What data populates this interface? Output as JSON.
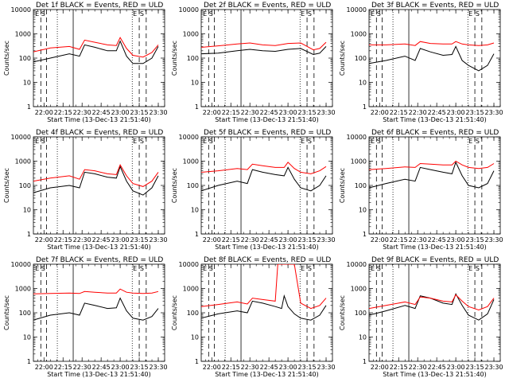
{
  "chart_data": [
    {
      "type": "line",
      "title": "Det 1f BLACK = Events, RED = ULD",
      "xlabel": "Start Time (13-Dec-13 21:51:40)",
      "ylabel": "Counts/sec",
      "yscale": "log",
      "ylim": [
        1,
        10000
      ],
      "xlim": [
        "21:51:40",
        "23:35:00"
      ],
      "x_ticks": [
        "22:00",
        "22:15",
        "22:30",
        "22:45",
        "23:00",
        "23:15",
        "23:30"
      ],
      "y_ticks": [
        "1",
        "10",
        "100",
        "1000",
        "10000"
      ],
      "markers": [
        "E",
        "S",
        "E",
        "S"
      ],
      "series": [
        {
          "name": "BLACK = Events",
          "color": "#000000",
          "x": [
            "21:51:40",
            "22:05",
            "22:20",
            "22:28",
            "22:32",
            "22:40",
            "22:50",
            "22:57",
            "23:00",
            "23:05",
            "23:10",
            "23:18",
            "23:25",
            "23:30"
          ],
          "y": [
            70,
            100,
            150,
            120,
            350,
            280,
            200,
            200,
            500,
            120,
            60,
            60,
            100,
            300
          ]
        },
        {
          "name": "RED = ULD",
          "color": "#ff0000",
          "x": [
            "21:51:40",
            "22:05",
            "22:20",
            "22:28",
            "22:32",
            "22:40",
            "22:50",
            "22:57",
            "23:00",
            "23:05",
            "23:10",
            "23:18",
            "23:25",
            "23:30"
          ],
          "y": [
            180,
            260,
            300,
            230,
            550,
            450,
            350,
            330,
            700,
            250,
            130,
            110,
            170,
            350
          ]
        }
      ]
    },
    {
      "type": "line",
      "title": "Det 2f BLACK = Events, RED = ULD",
      "xlabel": "Start Time (13-Dec-13 21:51:40)",
      "ylabel": "Counts/sec",
      "yscale": "log",
      "ylim": [
        1,
        10000
      ],
      "xlim": [
        "21:51:40",
        "23:35:00"
      ],
      "x_ticks": [
        "22:00",
        "22:15",
        "22:30",
        "22:45",
        "23:00",
        "23:15",
        "23:30"
      ],
      "y_ticks": [
        "1",
        "10",
        "100",
        "1000",
        "10000"
      ],
      "markers": [
        "E",
        "S",
        "E",
        "S"
      ],
      "series": [
        {
          "name": "BLACK = Events",
          "color": "#000000",
          "x": [
            "21:51:40",
            "22:05",
            "22:20",
            "22:30",
            "22:40",
            "22:50",
            "23:00",
            "23:10",
            "23:20",
            "23:25",
            "23:30"
          ],
          "y": [
            150,
            160,
            200,
            230,
            200,
            190,
            230,
            250,
            140,
            160,
            300
          ]
        },
        {
          "name": "RED = ULD",
          "color": "#ff0000",
          "x": [
            "21:51:40",
            "22:05",
            "22:20",
            "22:30",
            "22:40",
            "22:50",
            "23:00",
            "23:10",
            "23:20",
            "23:25",
            "23:30"
          ],
          "y": [
            280,
            320,
            380,
            420,
            350,
            330,
            400,
            420,
            220,
            250,
            450
          ]
        }
      ]
    },
    {
      "type": "line",
      "title": "Det 3f BLACK = Events, RED = ULD",
      "xlabel": "Start Time (13-Dec-13 21:51:40)",
      "ylabel": "Counts/sec",
      "yscale": "log",
      "ylim": [
        1,
        10000
      ],
      "xlim": [
        "21:51:40",
        "23:35:00"
      ],
      "x_ticks": [
        "22:00",
        "22:15",
        "22:30",
        "22:45",
        "23:00",
        "23:15",
        "23:30"
      ],
      "y_ticks": [
        "1",
        "10",
        "100",
        "1000",
        "10000"
      ],
      "markers": [
        "E",
        "S",
        "E",
        "S"
      ],
      "series": [
        {
          "name": "BLACK = Events",
          "color": "#000000",
          "x": [
            "21:51:40",
            "22:05",
            "22:20",
            "22:28",
            "22:32",
            "22:40",
            "22:50",
            "22:57",
            "23:00",
            "23:05",
            "23:10",
            "23:18",
            "23:25",
            "23:30"
          ],
          "y": [
            60,
            80,
            120,
            80,
            250,
            180,
            130,
            140,
            300,
            80,
            50,
            30,
            50,
            150
          ]
        },
        {
          "name": "RED = ULD",
          "color": "#ff0000",
          "x": [
            "21:51:40",
            "22:05",
            "22:20",
            "22:28",
            "22:32",
            "22:40",
            "22:50",
            "22:57",
            "23:00",
            "23:05",
            "23:10",
            "23:18",
            "23:25",
            "23:30"
          ],
          "y": [
            350,
            350,
            380,
            330,
            480,
            400,
            380,
            380,
            480,
            380,
            350,
            330,
            350,
            420
          ]
        }
      ]
    },
    {
      "type": "line",
      "title": "Det 4f BLACK = Events, RED = ULD",
      "xlabel": "Start Time (13-Dec-13 21:51:40)",
      "ylabel": "Counts/sec",
      "yscale": "log",
      "ylim": [
        1,
        10000
      ],
      "xlim": [
        "21:51:40",
        "23:35:00"
      ],
      "x_ticks": [
        "22:00",
        "22:15",
        "22:30",
        "22:45",
        "23:00",
        "23:15",
        "23:30"
      ],
      "y_ticks": [
        "1",
        "10",
        "100",
        "1000",
        "10000"
      ],
      "markers": [
        "E",
        "S",
        "E",
        "S"
      ],
      "series": [
        {
          "name": "BLACK = Events",
          "color": "#000000",
          "x": [
            "21:51:40",
            "22:05",
            "22:20",
            "22:28",
            "22:32",
            "22:40",
            "22:50",
            "22:57",
            "23:00",
            "23:05",
            "23:10",
            "23:18",
            "23:25",
            "23:30"
          ],
          "y": [
            50,
            80,
            100,
            80,
            350,
            300,
            220,
            200,
            600,
            150,
            60,
            40,
            80,
            250
          ]
        },
        {
          "name": "RED = ULD",
          "color": "#ff0000",
          "x": [
            "21:51:40",
            "22:05",
            "22:20",
            "22:28",
            "22:32",
            "22:40",
            "22:50",
            "22:57",
            "23:00",
            "23:05",
            "23:10",
            "23:18",
            "23:25",
            "23:30"
          ],
          "y": [
            150,
            200,
            250,
            180,
            450,
            400,
            300,
            280,
            700,
            250,
            120,
            90,
            150,
            350
          ]
        }
      ]
    },
    {
      "type": "line",
      "title": "Det 5f BLACK = Events, RED = ULD",
      "xlabel": "Start Time (13-Dec-13 21:51:40)",
      "ylabel": "Counts/sec",
      "yscale": "log",
      "ylim": [
        1,
        10000
      ],
      "xlim": [
        "21:51:40",
        "23:35:00"
      ],
      "x_ticks": [
        "22:00",
        "22:15",
        "22:30",
        "22:45",
        "23:00",
        "23:15",
        "23:30"
      ],
      "y_ticks": [
        "1",
        "10",
        "100",
        "1000",
        "10000"
      ],
      "markers": [
        "E",
        "S",
        "E",
        "S"
      ],
      "series": [
        {
          "name": "BLACK = Events",
          "color": "#000000",
          "x": [
            "21:51:40",
            "22:05",
            "22:20",
            "22:28",
            "22:32",
            "22:40",
            "22:50",
            "22:57",
            "23:00",
            "23:05",
            "23:10",
            "23:18",
            "23:25",
            "23:30"
          ],
          "y": [
            60,
            100,
            150,
            120,
            450,
            350,
            280,
            250,
            550,
            180,
            80,
            60,
            100,
            250
          ]
        },
        {
          "name": "RED = ULD",
          "color": "#ff0000",
          "x": [
            "21:51:40",
            "22:05",
            "22:20",
            "22:28",
            "22:32",
            "22:40",
            "22:50",
            "22:57",
            "23:00",
            "23:05",
            "23:10",
            "23:18",
            "23:25",
            "23:30"
          ],
          "y": [
            350,
            400,
            500,
            450,
            750,
            650,
            550,
            550,
            900,
            500,
            350,
            300,
            400,
            600
          ]
        }
      ]
    },
    {
      "type": "line",
      "title": "Det 6f BLACK = Events, RED = ULD",
      "xlabel": "Start Time (13-Dec-13 21:51:40)",
      "ylabel": "Counts/sec",
      "yscale": "log",
      "ylim": [
        1,
        10000
      ],
      "xlim": [
        "21:51:40",
        "23:35:00"
      ],
      "x_ticks": [
        "22:00",
        "22:15",
        "22:30",
        "22:45",
        "23:00",
        "23:15",
        "23:30"
      ],
      "y_ticks": [
        "1",
        "10",
        "100",
        "1000",
        "10000"
      ],
      "markers": [
        "E",
        "S",
        "E",
        "S"
      ],
      "series": [
        {
          "name": "BLACK = Events",
          "color": "#000000",
          "x": [
            "21:51:40",
            "22:05",
            "22:20",
            "22:28",
            "22:32",
            "22:40",
            "22:50",
            "22:57",
            "23:00",
            "23:05",
            "23:10",
            "23:18",
            "23:25",
            "23:30"
          ],
          "y": [
            80,
            120,
            180,
            150,
            550,
            450,
            350,
            300,
            900,
            250,
            100,
            80,
            120,
            400
          ]
        },
        {
          "name": "RED = ULD",
          "color": "#ff0000",
          "x": [
            "21:51:40",
            "22:05",
            "22:20",
            "22:28",
            "22:32",
            "22:40",
            "22:50",
            "22:57",
            "23:00",
            "23:05",
            "23:10",
            "23:18",
            "23:25",
            "23:30"
          ],
          "y": [
            450,
            500,
            580,
            550,
            800,
            750,
            700,
            700,
            1000,
            700,
            550,
            500,
            550,
            800
          ]
        }
      ]
    },
    {
      "type": "line",
      "title": "Det 7f BLACK = Events, RED = ULD",
      "xlabel": "Start Time (13-Dec-13 21:51:40)",
      "ylabel": "Counts/sec",
      "yscale": "log",
      "ylim": [
        1,
        10000
      ],
      "xlim": [
        "21:51:40",
        "23:35:00"
      ],
      "x_ticks": [
        "22:00",
        "22:15",
        "22:30",
        "22:45",
        "23:00",
        "23:15",
        "23:30"
      ],
      "y_ticks": [
        "1",
        "10",
        "100",
        "1000",
        "10000"
      ],
      "markers": [
        "E",
        "S",
        "E",
        "S"
      ],
      "series": [
        {
          "name": "BLACK = Events",
          "color": "#000000",
          "x": [
            "21:51:40",
            "22:05",
            "22:20",
            "22:28",
            "22:32",
            "22:40",
            "22:50",
            "22:57",
            "23:00",
            "23:05",
            "23:10",
            "23:18",
            "23:25",
            "23:30"
          ],
          "y": [
            50,
            80,
            100,
            80,
            250,
            200,
            150,
            160,
            400,
            120,
            60,
            50,
            70,
            150
          ]
        },
        {
          "name": "RED = ULD",
          "color": "#ff0000",
          "x": [
            "21:51:40",
            "22:05",
            "22:20",
            "22:28",
            "22:32",
            "22:40",
            "22:50",
            "22:57",
            "23:00",
            "23:05",
            "23:10",
            "23:18",
            "23:25",
            "23:30"
          ],
          "y": [
            600,
            620,
            650,
            620,
            750,
            700,
            650,
            650,
            950,
            700,
            650,
            620,
            650,
            750
          ]
        }
      ]
    },
    {
      "type": "line",
      "title": "Det 8f BLACK = Events, RED = ULD",
      "xlabel": "Start Time (13-Dec-13 21:51:40)",
      "ylabel": "Counts/sec",
      "yscale": "log",
      "ylim": [
        1,
        10000
      ],
      "xlim": [
        "21:51:40",
        "23:35:00"
      ],
      "x_ticks": [
        "22:00",
        "22:15",
        "22:30",
        "22:45",
        "23:00",
        "23:15",
        "23:30"
      ],
      "y_ticks": [
        "1",
        "10",
        "100",
        "1000",
        "10000"
      ],
      "markers": [
        "E",
        "S",
        "E",
        "S"
      ],
      "series": [
        {
          "name": "BLACK = Events",
          "color": "#000000",
          "x": [
            "21:51:40",
            "22:05",
            "22:20",
            "22:28",
            "22:32",
            "22:40",
            "22:50",
            "22:55",
            "22:57",
            "23:00",
            "23:05",
            "23:10",
            "23:18",
            "23:25",
            "23:30"
          ],
          "y": [
            60,
            90,
            120,
            100,
            300,
            250,
            180,
            150,
            500,
            180,
            90,
            60,
            50,
            80,
            200
          ]
        },
        {
          "name": "RED = ULD",
          "color": "#ff0000",
          "x": [
            "21:51:40",
            "22:05",
            "22:20",
            "22:28",
            "22:32",
            "22:40",
            "22:50",
            "22:52",
            "22:56",
            "23:00",
            "23:05",
            "23:10",
            "23:18",
            "23:25",
            "23:30"
          ],
          "y": [
            180,
            220,
            280,
            230,
            400,
            350,
            300,
            10000,
            10000,
            10000,
            10000,
            250,
            150,
            200,
            400
          ]
        }
      ]
    },
    {
      "type": "line",
      "title": "Det 9f BLACK = Events, RED = ULD",
      "xlabel": "Start Time (13-Dec-13 21:51:40)",
      "ylabel": "Counts/sec",
      "yscale": "log",
      "ylim": [
        1,
        10000
      ],
      "xlim": [
        "21:51:40",
        "23:35:00"
      ],
      "x_ticks": [
        "22:00",
        "22:15",
        "22:30",
        "22:45",
        "23:00",
        "23:15",
        "23:30"
      ],
      "y_ticks": [
        "1",
        "10",
        "100",
        "1000",
        "10000"
      ],
      "markers": [
        "E",
        "S",
        "E",
        "S"
      ],
      "series": [
        {
          "name": "BLACK = Events",
          "color": "#000000",
          "x": [
            "21:51:40",
            "22:05",
            "22:20",
            "22:28",
            "22:32",
            "22:40",
            "22:50",
            "22:57",
            "23:00",
            "23:05",
            "23:10",
            "23:18",
            "23:25",
            "23:30"
          ],
          "y": [
            80,
            120,
            200,
            150,
            500,
            400,
            250,
            220,
            600,
            200,
            80,
            50,
            90,
            350
          ]
        },
        {
          "name": "RED = ULD",
          "color": "#ff0000",
          "x": [
            "21:51:40",
            "22:05",
            "22:20",
            "22:28",
            "22:32",
            "22:40",
            "22:50",
            "22:57",
            "23:00",
            "23:05",
            "23:10",
            "23:18",
            "23:25",
            "23:30"
          ],
          "y": [
            150,
            200,
            280,
            220,
            450,
            400,
            300,
            280,
            550,
            300,
            180,
            130,
            180,
            400
          ]
        }
      ]
    }
  ]
}
